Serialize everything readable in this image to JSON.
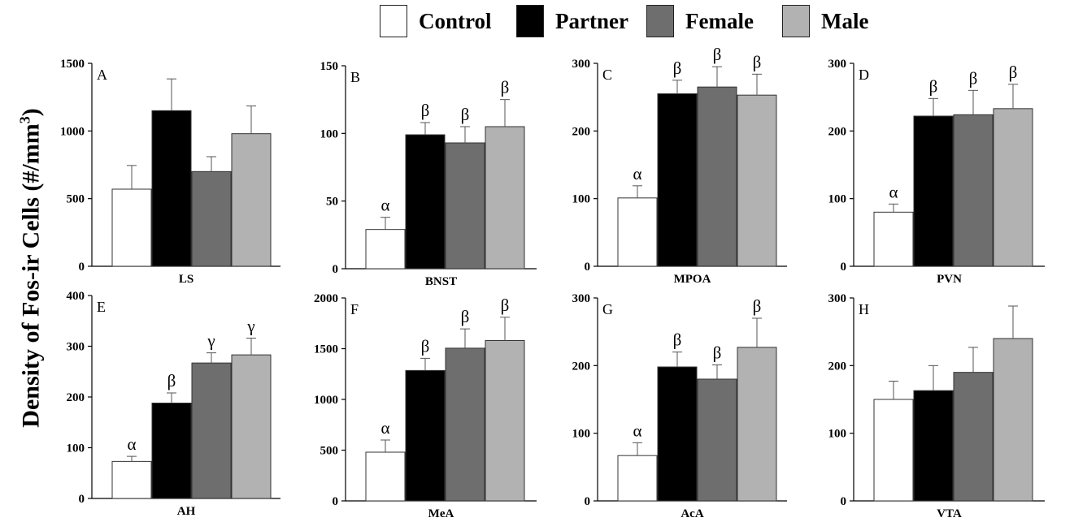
{
  "legend": {
    "items": [
      {
        "label": "Control",
        "color": "#ffffff"
      },
      {
        "label": "Partner",
        "color": "#000000"
      },
      {
        "label": "Female",
        "color": "#6e6e6e"
      },
      {
        "label": "Male",
        "color": "#b2b2b2"
      }
    ]
  },
  "ylabel_main": "Density of Fos-ir Cells (#/mm",
  "ylabel_sup": "3",
  "ylabel_end": ")",
  "chart_data": [
    {
      "type": "bar",
      "letter": "A",
      "region": "LS",
      "ylim": [
        0,
        1500
      ],
      "ticks": [
        0,
        500,
        1000,
        1500
      ],
      "series": [
        "Control",
        "Partner",
        "Female",
        "Male"
      ],
      "values": [
        570,
        1150,
        700,
        980
      ],
      "errors": [
        175,
        235,
        110,
        205
      ],
      "labels": [
        "",
        "",
        "",
        ""
      ]
    },
    {
      "type": "bar",
      "letter": "B",
      "region": "BNST",
      "ylim": [
        0,
        150
      ],
      "ticks": [
        0,
        50,
        100,
        150
      ],
      "series": [
        "Control",
        "Partner",
        "Female",
        "Male"
      ],
      "values": [
        29,
        99,
        93,
        105
      ],
      "errors": [
        9,
        9,
        12,
        20
      ],
      "labels": [
        "α",
        "β",
        "β",
        "β"
      ]
    },
    {
      "type": "bar",
      "letter": "C",
      "region": "MPOA",
      "ylim": [
        0,
        300
      ],
      "ticks": [
        0,
        100,
        200,
        300
      ],
      "series": [
        "Control",
        "Partner",
        "Female",
        "Male"
      ],
      "values": [
        101,
        255,
        265,
        253
      ],
      "errors": [
        18,
        20,
        30,
        31
      ],
      "labels": [
        "α",
        "β",
        "β",
        "β"
      ]
    },
    {
      "type": "bar",
      "letter": "D",
      "region": "PVN",
      "ylim": [
        0,
        300
      ],
      "ticks": [
        0,
        100,
        200,
        300
      ],
      "series": [
        "Control",
        "Partner",
        "Female",
        "Male"
      ],
      "values": [
        80,
        222,
        224,
        233
      ],
      "errors": [
        12,
        26,
        36,
        36
      ],
      "labels": [
        "α",
        "β",
        "β",
        "β"
      ]
    },
    {
      "type": "bar",
      "letter": "E",
      "region": "AH",
      "ylim": [
        0,
        400
      ],
      "ticks": [
        0,
        100,
        200,
        300,
        400
      ],
      "series": [
        "Control",
        "Partner",
        "Female",
        "Male"
      ],
      "values": [
        73,
        188,
        267,
        283
      ],
      "errors": [
        10,
        20,
        20,
        33
      ],
      "labels": [
        "α",
        "β",
        "γ",
        "γ"
      ]
    },
    {
      "type": "bar",
      "letter": "F",
      "region": "MeA",
      "ylim": [
        0,
        2000
      ],
      "ticks": [
        0,
        500,
        1000,
        1500,
        2000
      ],
      "series": [
        "Control",
        "Partner",
        "Female",
        "Male"
      ],
      "values": [
        480,
        1285,
        1505,
        1580
      ],
      "errors": [
        120,
        120,
        190,
        230
      ],
      "labels": [
        "α",
        "β",
        "β",
        "β"
      ]
    },
    {
      "type": "bar",
      "letter": "G",
      "region": "AcA",
      "ylim": [
        0,
        300
      ],
      "ticks": [
        0,
        100,
        200,
        300
      ],
      "series": [
        "Control",
        "Partner",
        "Female",
        "Male"
      ],
      "values": [
        67,
        198,
        180,
        227
      ],
      "errors": [
        19,
        22,
        21,
        43
      ],
      "labels": [
        "α",
        "β",
        "β",
        "β"
      ]
    },
    {
      "type": "bar",
      "letter": "H",
      "region": "VTA",
      "ylim": [
        0,
        300
      ],
      "ticks": [
        0,
        100,
        200,
        300
      ],
      "series": [
        "Control",
        "Partner",
        "Female",
        "Male"
      ],
      "values": [
        150,
        163,
        190,
        240
      ],
      "errors": [
        27,
        37,
        37,
        48
      ],
      "labels": [
        "",
        "",
        "",
        ""
      ]
    }
  ]
}
